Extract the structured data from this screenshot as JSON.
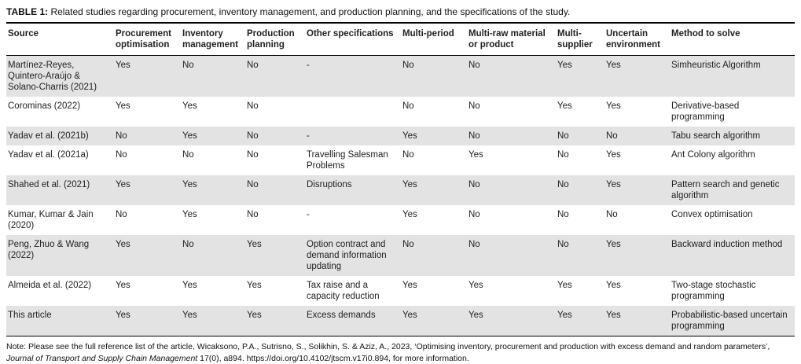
{
  "title": {
    "label": "TABLE 1:",
    "text": " Related studies regarding procurement, inventory management, and production planning, and the specifications of the study."
  },
  "table": {
    "columns": [
      "Source",
      "Procurement optimisation",
      "Inventory management",
      "Production planning",
      "Other specifications",
      "Multi-period",
      "Multi-raw material or product",
      "Multi-supplier",
      "Uncertain environment",
      "Method to solve"
    ],
    "rows": [
      [
        "Martínez-Reyes, Quintero-Araújo & Solano-Charris (2021)",
        "Yes",
        "No",
        "No",
        "-",
        "No",
        "No",
        "Yes",
        "Yes",
        "Simheuristic Algorithm"
      ],
      [
        "Corominas (2022)",
        "Yes",
        "Yes",
        "No",
        "",
        "No",
        "No",
        "Yes",
        "Yes",
        "Derivative-based programming"
      ],
      [
        "Yadav et al. (2021b)",
        "No",
        "Yes",
        "No",
        "-",
        "Yes",
        "No",
        "No",
        "No",
        "Tabu search algorithm"
      ],
      [
        "Yadav et al. (2021a)",
        "No",
        "No",
        "No",
        "Travelling Salesman Problems",
        "No",
        "Yes",
        "No",
        "Yes",
        "Ant Colony algorithm"
      ],
      [
        "Shahed et al. (2021)",
        "Yes",
        "Yes",
        "No",
        "Disruptions",
        "Yes",
        "No",
        "No",
        "Yes",
        "Pattern search and genetic algorithm"
      ],
      [
        "Kumar, Kumar & Jain (2020)",
        "No",
        "Yes",
        "No",
        "-",
        "Yes",
        "No",
        "No",
        "No",
        "Convex optimisation"
      ],
      [
        "Peng, Zhuo & Wang (2022)",
        "Yes",
        "No",
        "Yes",
        "Option contract and demand information updating",
        "No",
        "No",
        "No",
        "Yes",
        "Backward induction method"
      ],
      [
        "Almeida et al. (2022)",
        "Yes",
        "Yes",
        "Yes",
        "Tax raise and a capacity reduction",
        "Yes",
        "Yes",
        "Yes",
        "Yes",
        "Two-stage stochastic programming"
      ],
      [
        "This article",
        "Yes",
        "Yes",
        "Yes",
        "Excess demands",
        "Yes",
        "Yes",
        "Yes",
        "Yes",
        "Probabilistic-based uncertain programming"
      ]
    ]
  },
  "note": {
    "prefix": "Note: Please see the full reference list of the article, Wicaksono, P.A., Sutrisno, S., Solikhin, S. & Aziz, A., 2023, ‘Optimising inventory, procurement and production with excess demand and random parameters’, ",
    "italic": "Journal of Transport and Supply Chain Management",
    "mid": " 17(0), a894. ",
    "doi": "https://doi.org/10.4102/jtscm.v17i0.894",
    "suffix": ", for more information."
  },
  "colors": {
    "row_shade": "#e3e3e3",
    "text": "#1a1a1a",
    "border": "#000000"
  }
}
